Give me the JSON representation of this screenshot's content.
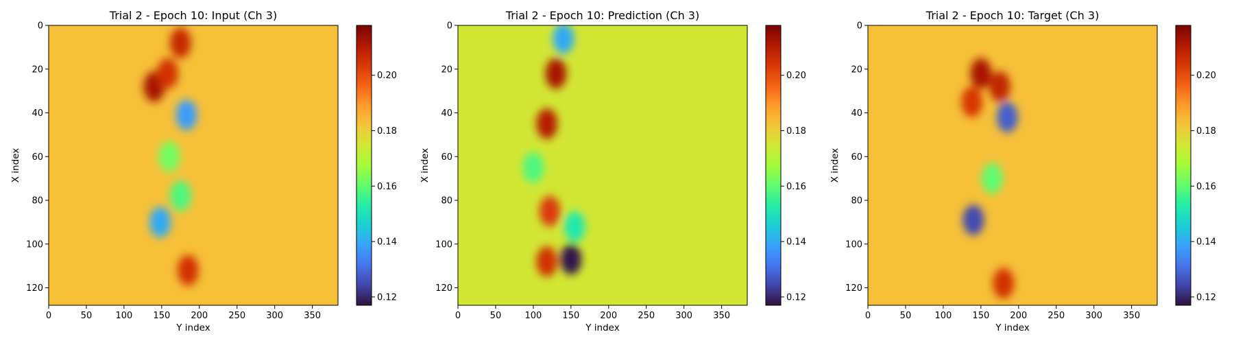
{
  "colormap": {
    "name": "turbo",
    "stops": [
      "#30123b",
      "#4145ab",
      "#4675ed",
      "#39a2fc",
      "#1bcfd4",
      "#24eca6",
      "#61fc6c",
      "#a4fc3b",
      "#d1e834",
      "#f3c63a",
      "#fe9b2d",
      "#f36315",
      "#d93806",
      "#b11901",
      "#7a0402"
    ]
  },
  "chart_data": [
    {
      "type": "heatmap",
      "title": "Trial 2 - Epoch 10: Input (Ch 3)",
      "xlabel": "Y index",
      "ylabel": "X index",
      "x_ticks": [
        0,
        50,
        100,
        150,
        200,
        250,
        300,
        350
      ],
      "y_ticks": [
        0,
        20,
        40,
        60,
        80,
        100,
        120
      ],
      "x_range": [
        0,
        384
      ],
      "y_range": [
        0,
        128
      ],
      "colorbar": {
        "range": [
          0.117,
          0.218
        ],
        "ticks": [
          "0.12",
          "0.14",
          "0.16",
          "0.18",
          "0.20"
        ]
      },
      "background_value": 0.183,
      "features": [
        {
          "y": 140,
          "x": 28,
          "value": 0.212
        },
        {
          "y": 175,
          "x": 8,
          "value": 0.207
        },
        {
          "y": 158,
          "x": 22,
          "value": 0.205
        },
        {
          "y": 185,
          "x": 112,
          "value": 0.205
        },
        {
          "y": 183,
          "x": 41,
          "value": 0.138
        },
        {
          "y": 148,
          "x": 90,
          "value": 0.14
        },
        {
          "y": 175,
          "x": 78,
          "value": 0.158
        },
        {
          "y": 160,
          "x": 60,
          "value": 0.162
        }
      ]
    },
    {
      "type": "heatmap",
      "title": "Trial 2 - Epoch 10: Prediction (Ch 3)",
      "xlabel": "Y index",
      "ylabel": "X index",
      "x_ticks": [
        0,
        50,
        100,
        150,
        200,
        250,
        300,
        350
      ],
      "y_ticks": [
        0,
        20,
        40,
        60,
        80,
        100,
        120
      ],
      "x_range": [
        0,
        384
      ],
      "y_range": [
        0,
        128
      ],
      "colorbar": {
        "range": [
          0.117,
          0.218
        ],
        "ticks": [
          "0.12",
          "0.14",
          "0.16",
          "0.18",
          "0.20"
        ]
      },
      "background_value": 0.175,
      "features": [
        {
          "y": 130,
          "x": 22,
          "value": 0.212
        },
        {
          "y": 118,
          "x": 45,
          "value": 0.21
        },
        {
          "y": 122,
          "x": 85,
          "value": 0.203
        },
        {
          "y": 118,
          "x": 108,
          "value": 0.205
        },
        {
          "y": 150,
          "x": 107,
          "value": 0.118
        },
        {
          "y": 140,
          "x": 6,
          "value": 0.14
        },
        {
          "y": 100,
          "x": 65,
          "value": 0.158
        },
        {
          "y": 155,
          "x": 92,
          "value": 0.152
        }
      ]
    },
    {
      "type": "heatmap",
      "title": "Trial 2 - Epoch 10: Target (Ch 3)",
      "xlabel": "Y index",
      "ylabel": "X index",
      "x_ticks": [
        0,
        50,
        100,
        150,
        200,
        250,
        300,
        350
      ],
      "y_ticks": [
        0,
        20,
        40,
        60,
        80,
        100,
        120
      ],
      "x_range": [
        0,
        384
      ],
      "y_range": [
        0,
        128
      ],
      "colorbar": {
        "range": [
          0.117,
          0.218
        ],
        "ticks": [
          "0.12",
          "0.14",
          "0.16",
          "0.18",
          "0.20"
        ]
      },
      "background_value": 0.183,
      "features": [
        {
          "y": 150,
          "x": 22,
          "value": 0.212
        },
        {
          "y": 175,
          "x": 28,
          "value": 0.208
        },
        {
          "y": 138,
          "x": 35,
          "value": 0.204
        },
        {
          "y": 180,
          "x": 118,
          "value": 0.205
        },
        {
          "y": 185,
          "x": 42,
          "value": 0.128
        },
        {
          "y": 140,
          "x": 89,
          "value": 0.125
        },
        {
          "y": 165,
          "x": 70,
          "value": 0.16
        }
      ]
    }
  ]
}
